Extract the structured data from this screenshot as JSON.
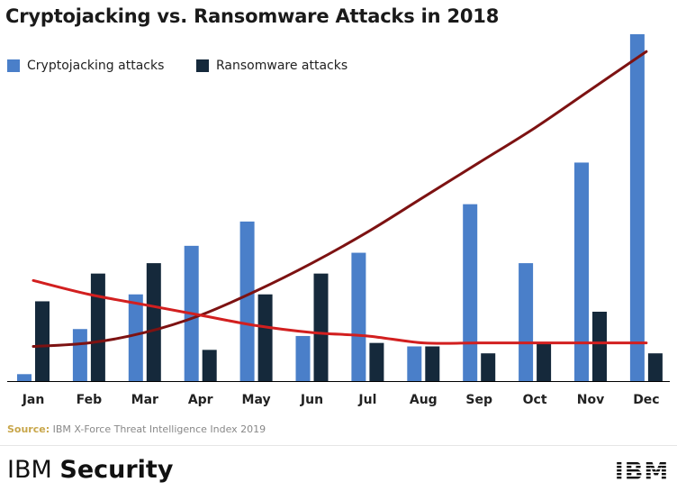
{
  "chart_data": {
    "type": "bar",
    "title": "Cryptojacking vs. Ransomware Attacks in 2018",
    "categories": [
      "Jan",
      "Feb",
      "Mar",
      "Apr",
      "May",
      "Jun",
      "Jul",
      "Aug",
      "Sep",
      "Oct",
      "Nov",
      "Dec"
    ],
    "series": [
      {
        "name": "Cryptojacking attacks",
        "color": "#4a7fc9",
        "values": [
          2,
          15,
          25,
          39,
          46,
          13,
          37,
          10,
          51,
          34,
          63,
          100
        ]
      },
      {
        "name": "Ransomware attacks",
        "color": "#15293b",
        "values": [
          23,
          31,
          34,
          9,
          25,
          31,
          11,
          10,
          8,
          11,
          20,
          8
        ]
      }
    ],
    "trendlines": [
      {
        "name": "Cryptojacking trend",
        "color": "#7d1212",
        "values": [
          10,
          11,
          14,
          19,
          26,
          34,
          43,
          53,
          63,
          73,
          84,
          95
        ]
      },
      {
        "name": "Ransomware trend",
        "color": "#d21f1f",
        "values": [
          29,
          25,
          22,
          19,
          16,
          14,
          13,
          11,
          11,
          11,
          11,
          11
        ]
      }
    ],
    "ylim": [
      0,
      100
    ],
    "xlabel": "",
    "ylabel": "",
    "grid": false,
    "legend": "top-left"
  },
  "source": {
    "label": "Source:",
    "text": "IBM X-Force Threat Intelligence Index 2019"
  },
  "brand": {
    "part1": "IBM",
    "part2": "Security"
  },
  "logo": {
    "text": "IBM"
  }
}
